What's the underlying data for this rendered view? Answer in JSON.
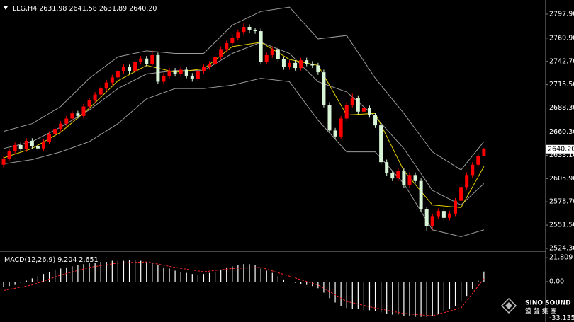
{
  "chart_data": {
    "type": "candlestick",
    "title": "LLG,H4",
    "last_labels": [
      "2631.98",
      "2641.58",
      "2631.89",
      "2640.20"
    ],
    "up_color": "#ff0000",
    "down_color": "#d8f5d8",
    "band_color": "#9a9a9a",
    "ma_color": "#e6d200",
    "ylim": [
      2521,
      2814.4
    ],
    "yticks": [
      {
        "value": 2797.9,
        "label": "2797.90"
      },
      {
        "value": 2769.9,
        "label": "2769.90"
      },
      {
        "value": 2742.7,
        "label": "2742.70"
      },
      {
        "value": 2715.5,
        "label": "2715.50"
      },
      {
        "value": 2688.3,
        "label": "2688.30"
      },
      {
        "value": 2660.3,
        "label": "2660.30"
      },
      {
        "value": 2633.1,
        "label": "2633.10"
      },
      {
        "value": 2605.9,
        "label": "2605.90"
      },
      {
        "value": 2578.7,
        "label": "2578.70"
      },
      {
        "value": 2551.5,
        "label": "2551.50"
      },
      {
        "value": 2524.3,
        "label": "2524.30"
      }
    ],
    "candles": [
      [
        2622,
        2632,
        2619,
        2629
      ],
      [
        2629,
        2641,
        2626,
        2638
      ],
      [
        2638,
        2648,
        2635,
        2645
      ],
      [
        2645,
        2648,
        2637,
        2640
      ],
      [
        2640,
        2653,
        2637,
        2650
      ],
      [
        2650,
        2653,
        2641,
        2644
      ],
      [
        2644,
        2647,
        2638,
        2641
      ],
      [
        2641,
        2652,
        2638,
        2649
      ],
      [
        2649,
        2661,
        2646,
        2658
      ],
      [
        2658,
        2667,
        2655,
        2664
      ],
      [
        2664,
        2673,
        2661,
        2670
      ],
      [
        2670,
        2679,
        2667,
        2676
      ],
      [
        2676,
        2685,
        2673,
        2682
      ],
      [
        2682,
        2685,
        2676,
        2679
      ],
      [
        2679,
        2693,
        2676,
        2690
      ],
      [
        2690,
        2700,
        2687,
        2697
      ],
      [
        2697,
        2707,
        2694,
        2704
      ],
      [
        2704,
        2714,
        2701,
        2711
      ],
      [
        2711,
        2721,
        2708,
        2718
      ],
      [
        2718,
        2727,
        2715,
        2724
      ],
      [
        2724,
        2734,
        2721,
        2731
      ],
      [
        2731,
        2739,
        2728,
        2736
      ],
      [
        2736,
        2739,
        2728,
        2731
      ],
      [
        2731,
        2745,
        2728,
        2742
      ],
      [
        2742,
        2749,
        2739,
        2746
      ],
      [
        2746,
        2749,
        2737,
        2740
      ],
      [
        2740,
        2756,
        2737,
        2750
      ],
      [
        2750,
        2753,
        2716,
        2719
      ],
      [
        2719,
        2729,
        2716,
        2726
      ],
      [
        2726,
        2735,
        2723,
        2732
      ],
      [
        2732,
        2735,
        2725,
        2728
      ],
      [
        2728,
        2736,
        2725,
        2733
      ],
      [
        2733,
        2736,
        2723,
        2726
      ],
      [
        2726,
        2729,
        2719,
        2722
      ],
      [
        2722,
        2734,
        2719,
        2731
      ],
      [
        2731,
        2739,
        2728,
        2736
      ],
      [
        2736,
        2743,
        2733,
        2740
      ],
      [
        2740,
        2751,
        2737,
        2748
      ],
      [
        2748,
        2760,
        2745,
        2757
      ],
      [
        2757,
        2767,
        2754,
        2764
      ],
      [
        2764,
        2773,
        2761,
        2770
      ],
      [
        2770,
        2780,
        2767,
        2777
      ],
      [
        2777,
        2788,
        2774,
        2783
      ],
      [
        2783,
        2786,
        2776,
        2779
      ],
      [
        2779,
        2782,
        2775,
        2778
      ],
      [
        2778,
        2781,
        2739,
        2742
      ],
      [
        2742,
        2753,
        2739,
        2750
      ],
      [
        2750,
        2760,
        2747,
        2757
      ],
      [
        2757,
        2760,
        2742,
        2745
      ],
      [
        2745,
        2748,
        2733,
        2736
      ],
      [
        2736,
        2744,
        2733,
        2741
      ],
      [
        2741,
        2744,
        2732,
        2735
      ],
      [
        2735,
        2747,
        2732,
        2744
      ],
      [
        2744,
        2747,
        2737,
        2740
      ],
      [
        2740,
        2743,
        2735,
        2738
      ],
      [
        2738,
        2741,
        2727,
        2730
      ],
      [
        2730,
        2733,
        2689,
        2692
      ],
      [
        2692,
        2695,
        2659,
        2662
      ],
      [
        2662,
        2665,
        2652,
        2655
      ],
      [
        2655,
        2679,
        2652,
        2676
      ],
      [
        2676,
        2695,
        2673,
        2692
      ],
      [
        2692,
        2705,
        2689,
        2700
      ],
      [
        2700,
        2703,
        2681,
        2684
      ],
      [
        2684,
        2691,
        2681,
        2688
      ],
      [
        2688,
        2691,
        2677,
        2680
      ],
      [
        2680,
        2683,
        2665,
        2668
      ],
      [
        2668,
        2671,
        2622,
        2625
      ],
      [
        2625,
        2628,
        2609,
        2612
      ],
      [
        2612,
        2615,
        2603,
        2606
      ],
      [
        2606,
        2618,
        2603,
        2615
      ],
      [
        2615,
        2618,
        2595,
        2598
      ],
      [
        2598,
        2613,
        2595,
        2610
      ],
      [
        2610,
        2613,
        2600,
        2603
      ],
      [
        2603,
        2606,
        2567,
        2570
      ],
      [
        2570,
        2573,
        2545,
        2550
      ],
      [
        2550,
        2565,
        2547,
        2562
      ],
      [
        2562,
        2571,
        2559,
        2568
      ],
      [
        2568,
        2571,
        2557,
        2560
      ],
      [
        2560,
        2568,
        2557,
        2565
      ],
      [
        2565,
        2583,
        2562,
        2580
      ],
      [
        2580,
        2599,
        2577,
        2596
      ],
      [
        2596,
        2613,
        2593,
        2610
      ],
      [
        2610,
        2625,
        2607,
        2622
      ],
      [
        2622,
        2635,
        2619,
        2631.98
      ],
      [
        2631.98,
        2641.58,
        2631.89,
        2640.2
      ]
    ],
    "indicator_x": [
      0,
      5,
      10,
      15,
      20,
      25,
      30,
      35,
      40,
      45,
      50,
      55,
      60,
      65,
      70,
      75,
      80,
      84
    ],
    "bb_upper": [
      2661,
      2670,
      2690,
      2723,
      2748,
      2755,
      2752,
      2752,
      2785,
      2801,
      2806,
      2769,
      2773,
      2723,
      2682,
      2637,
      2616,
      2649
    ],
    "bb_middle": [
      2641,
      2649,
      2666,
      2686,
      2711,
      2728,
      2732,
      2732,
      2752,
      2765,
      2752,
      2719,
      2707,
      2678,
      2641,
      2592,
      2575,
      2600
    ],
    "bb_lower": [
      2623,
      2628,
      2637,
      2649,
      2670,
      2699,
      2711,
      2711,
      2715,
      2723,
      2719,
      2674,
      2637,
      2637,
      2600,
      2546,
      2538,
      2546
    ],
    "ma": [
      2630,
      2641,
      2660,
      2688,
      2720,
      2738,
      2730,
      2734,
      2760,
      2765,
      2745,
      2738,
      2680,
      2682,
      2615,
      2575,
      2572,
      2620
    ],
    "macd": {
      "label": "MACD(12,26,9)",
      "ylim": [
        -33.5,
        24.5
      ],
      "yticks": [
        21.809,
        {
          "value": 0,
          "label": "0.00"
        },
        -33.135
      ],
      "histogram_color": "#ffffff",
      "signal_color": "#ff2a2a",
      "histogram": [
        -5,
        -4,
        -3,
        -1,
        1,
        3,
        5,
        7,
        9,
        11,
        12,
        13,
        14,
        15,
        16,
        17,
        17,
        18,
        18,
        19,
        19,
        19,
        20,
        20,
        19,
        18,
        17,
        15,
        13,
        12,
        10,
        9,
        8,
        7,
        6,
        7,
        8,
        9,
        11,
        13,
        14,
        15,
        16,
        16,
        15,
        12,
        10,
        8,
        5,
        2,
        0,
        -1,
        -2,
        -3,
        -4,
        -6,
        -10,
        -15,
        -19,
        -22,
        -24,
        -25,
        -25,
        -26,
        -26,
        -27,
        -28,
        -29,
        -30,
        -30,
        -31,
        -31,
        -32,
        -32,
        -32,
        -31,
        -29,
        -27,
        -25,
        -22,
        -18,
        -13,
        -7,
        1,
        9.204
      ],
      "signal": [
        -8,
        -3,
        6,
        13,
        17,
        18,
        13,
        9,
        12,
        13,
        5,
        -3,
        -18,
        -24,
        -29,
        -31,
        -24,
        2.651
      ]
    },
    "watermark": [
      "SINO SOUND",
      "漢 聲 集 團"
    ]
  }
}
